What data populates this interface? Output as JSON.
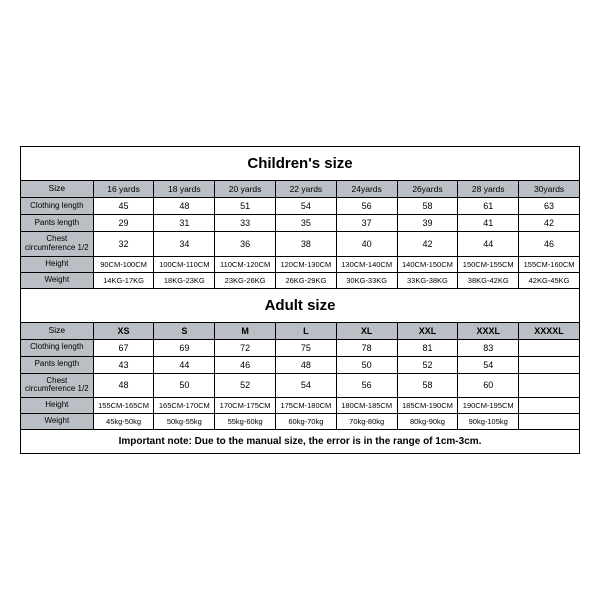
{
  "childrens": {
    "title": "Children's size",
    "headers": [
      "Size",
      "16 yards",
      "18 yards",
      "20 yards",
      "22 yards",
      "24yards",
      "26yards",
      "28 yards",
      "30yards"
    ],
    "rows": [
      {
        "label": "Clothing length",
        "cells": [
          "45",
          "48",
          "51",
          "54",
          "56",
          "58",
          "61",
          "63"
        ]
      },
      {
        "label": "Pants length",
        "cells": [
          "29",
          "31",
          "33",
          "35",
          "37",
          "39",
          "41",
          "42"
        ]
      },
      {
        "label": "Chest circumference 1/2",
        "cells": [
          "32",
          "34",
          "36",
          "38",
          "40",
          "42",
          "44",
          "46"
        ]
      },
      {
        "label": "Height",
        "cells": [
          "90CM-100CM",
          "100CM-110CM",
          "110CM-120CM",
          "120CM-130CM",
          "130CM-140CM",
          "140CM-150CM",
          "150CM-155CM",
          "155CM-160CM"
        ]
      },
      {
        "label": "Weight",
        "cells": [
          "14KG-17KG",
          "18KG-23KG",
          "23KG-26KG",
          "26KG-29KG",
          "30KG-33KG",
          "33KG-38KG",
          "38KG-42KG",
          "42KG-45KG"
        ]
      }
    ]
  },
  "adults": {
    "title": "Adult size",
    "headers": [
      "Size",
      "XS",
      "S",
      "M",
      "L",
      "XL",
      "XXL",
      "XXXL",
      "XXXXL"
    ],
    "rows": [
      {
        "label": "Clothing length",
        "cells": [
          "67",
          "69",
          "72",
          "75",
          "78",
          "81",
          "83",
          ""
        ]
      },
      {
        "label": "Pants length",
        "cells": [
          "43",
          "44",
          "46",
          "48",
          "50",
          "52",
          "54",
          ""
        ]
      },
      {
        "label": "Chest circumference 1/2",
        "cells": [
          "48",
          "50",
          "52",
          "54",
          "56",
          "58",
          "60",
          ""
        ]
      },
      {
        "label": "Height",
        "cells": [
          "155CM-165CM",
          "165CM-170CM",
          "170CM-175CM",
          "175CM-180CM",
          "180CM-185CM",
          "185CM-190CM",
          "190CM-195CM",
          ""
        ]
      },
      {
        "label": "Weight",
        "cells": [
          "45kg-50kg",
          "50kg-55kg",
          "55kg-60kg",
          "60kg-70kg",
          "70kg-80kg",
          "80kg-90kg",
          "90kg-105kg",
          ""
        ]
      }
    ]
  },
  "note": "Important note: Due to the manual size, the error is in the range of 1cm-3cm.",
  "styling": {
    "header_bg": "#b9bfc4",
    "border_color": "#000000",
    "title_fontsize": 15,
    "cell_fontsize": 9,
    "label_fontsize": 8,
    "note_fontsize": 10,
    "background": "#ffffff"
  }
}
